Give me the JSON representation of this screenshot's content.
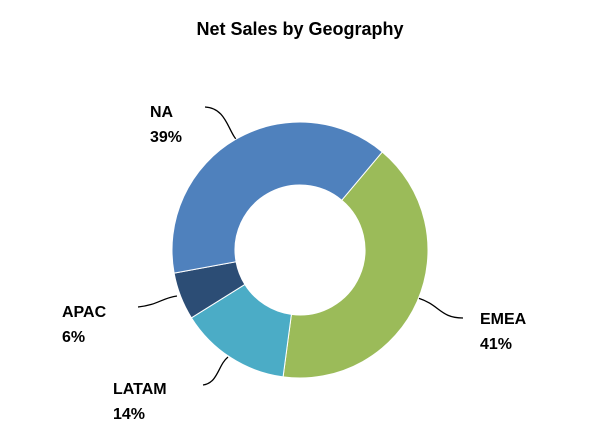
{
  "chart_data": {
    "type": "donut",
    "title": "Net Sales by Geography",
    "categories": [
      "EMEA",
      "LATAM",
      "APAC",
      "NA"
    ],
    "values": [
      41,
      14,
      6,
      39
    ],
    "value_labels": [
      "41%",
      "14%",
      "6%",
      "39%"
    ],
    "colors": [
      "#9bbb59",
      "#4bacc6",
      "#2c4d75",
      "#4f81bd"
    ]
  }
}
